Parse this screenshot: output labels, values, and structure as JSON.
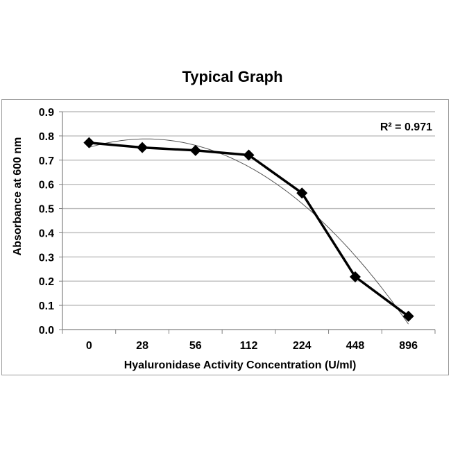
{
  "chart_data": {
    "type": "line",
    "title": "Typical Graph",
    "xlabel": "Hyaluronidase Activity Concentration (U/ml)",
    "ylabel": "Absorbance at 600 nm",
    "categories": [
      "0",
      "28",
      "56",
      "112",
      "224",
      "448",
      "896"
    ],
    "ylim": [
      0,
      0.9
    ],
    "yticks": [
      "0.0",
      "0.1",
      "0.2",
      "0.3",
      "0.4",
      "0.5",
      "0.6",
      "0.7",
      "0.8",
      "0.9"
    ],
    "grid": true,
    "series": [
      {
        "values": [
          0.772,
          0.752,
          0.74,
          0.721,
          0.564,
          0.218,
          0.055
        ],
        "marker": "diamond",
        "color": "#000000"
      }
    ],
    "trendline": {
      "type": "polynomial",
      "color": "#555555"
    },
    "annotation": "R² = 0.971"
  }
}
